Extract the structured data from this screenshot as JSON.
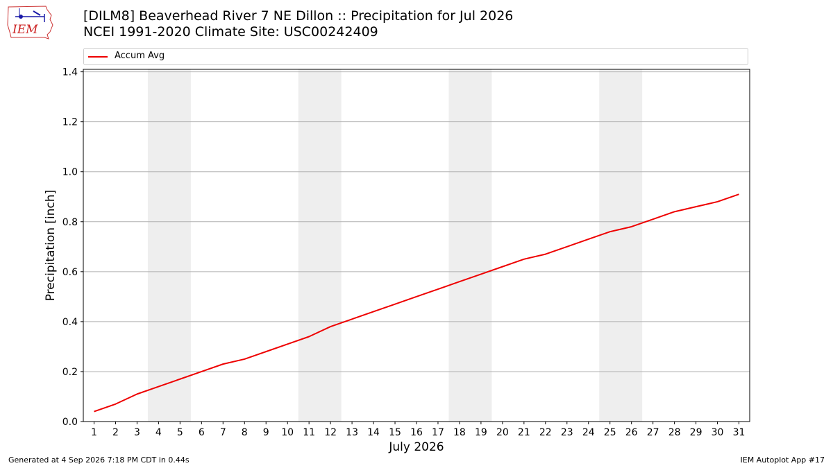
{
  "title_line1": "[DILM8] Beaverhead River 7 NE Dillon :: Precipitation for Jul 2026",
  "title_line2": "NCEI 1991-2020 Climate Site: USC00242409",
  "logo_text": "IEM",
  "footer_left": "Generated at 4 Sep 2026 7:18 PM CDT in 0.44s",
  "footer_right": "IEM Autoplot App #17",
  "chart_data": {
    "type": "line",
    "xlabel": "July 2026",
    "ylabel": "Precipitation [inch]",
    "x": [
      1,
      2,
      3,
      4,
      5,
      6,
      7,
      8,
      9,
      10,
      11,
      12,
      13,
      14,
      15,
      16,
      17,
      18,
      19,
      20,
      21,
      22,
      23,
      24,
      25,
      26,
      27,
      28,
      29,
      30,
      31
    ],
    "series": [
      {
        "name": "Accum Avg",
        "color": "#ee0000",
        "values": [
          0.04,
          0.07,
          0.11,
          0.14,
          0.17,
          0.2,
          0.23,
          0.25,
          0.28,
          0.31,
          0.34,
          0.38,
          0.41,
          0.44,
          0.47,
          0.5,
          0.53,
          0.56,
          0.59,
          0.62,
          0.65,
          0.67,
          0.7,
          0.73,
          0.76,
          0.78,
          0.81,
          0.84,
          0.86,
          0.88,
          0.91
        ]
      }
    ],
    "xlim": [
      0.5,
      31.5
    ],
    "ylim": [
      0,
      1.41
    ],
    "yticks": [
      0.0,
      0.2,
      0.4,
      0.6,
      0.8,
      1.0,
      1.2,
      1.4
    ],
    "ytick_labels": [
      "0.0",
      "0.2",
      "0.4",
      "0.6",
      "0.8",
      "1.0",
      "1.2",
      "1.4"
    ],
    "xticks": [
      1,
      2,
      3,
      4,
      5,
      6,
      7,
      8,
      9,
      10,
      11,
      12,
      13,
      14,
      15,
      16,
      17,
      18,
      19,
      20,
      21,
      22,
      23,
      24,
      25,
      26,
      27,
      28,
      29,
      30,
      31
    ],
    "weekend_bands": [
      [
        3.5,
        5.5
      ],
      [
        10.5,
        12.5
      ],
      [
        17.5,
        19.5
      ],
      [
        24.5,
        26.5
      ]
    ],
    "band_color": "#eeeeee",
    "grid": "horizontal",
    "legend_position": "top"
  }
}
